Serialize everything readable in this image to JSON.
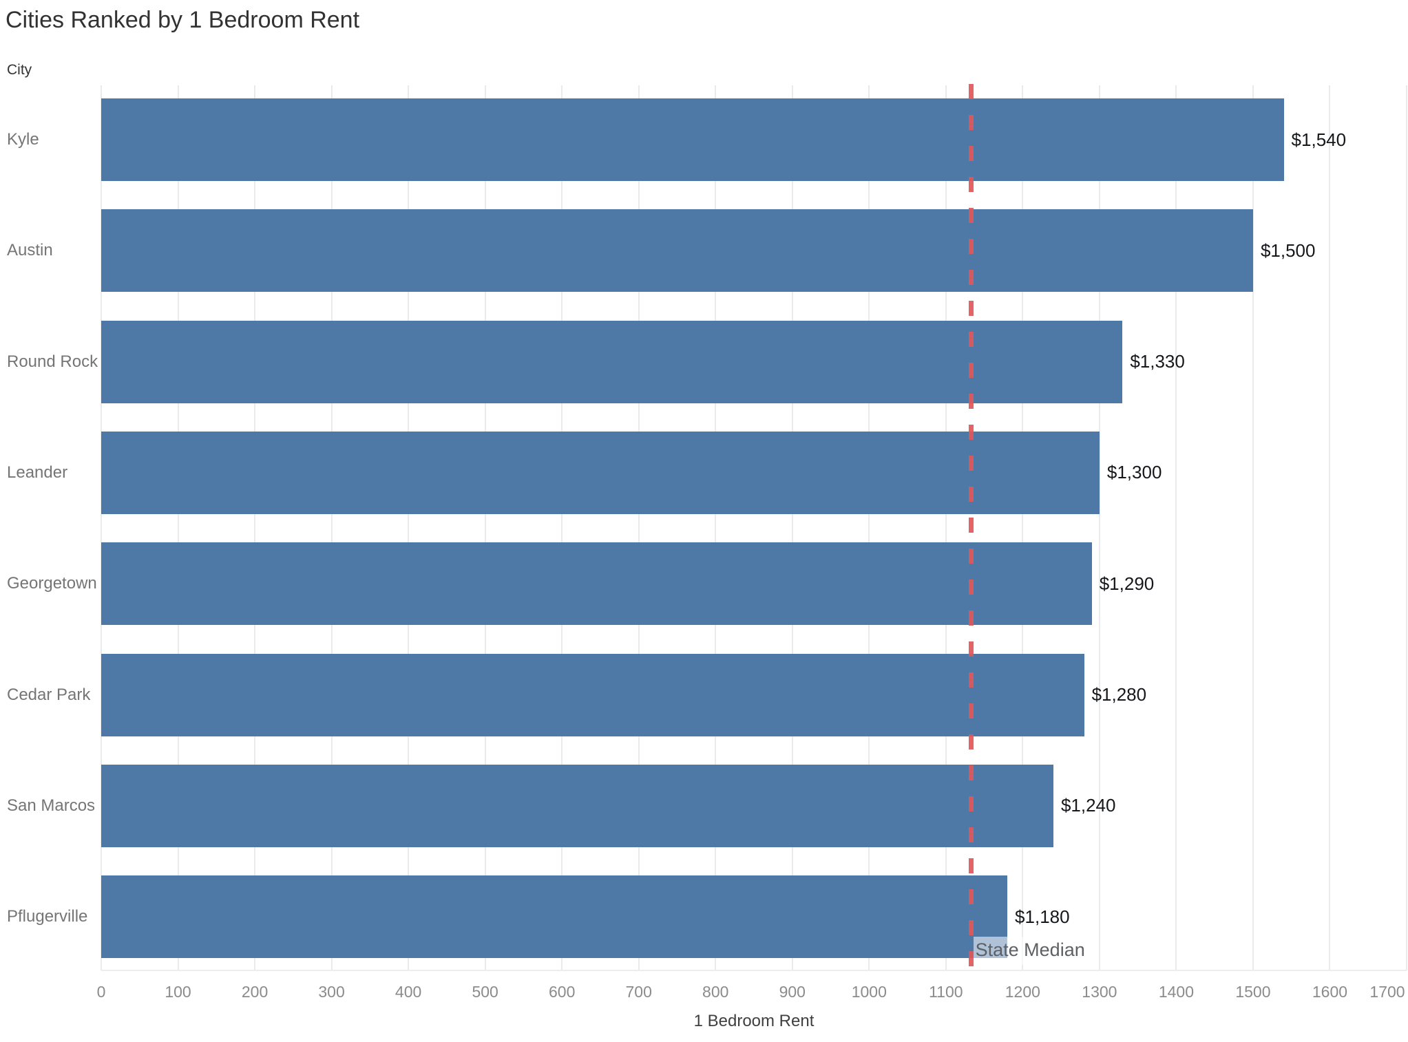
{
  "page": {
    "background": "#ffffff"
  },
  "chart_data": {
    "type": "bar",
    "orientation": "horizontal",
    "title": "Cities Ranked by 1 Bedroom Rent",
    "ylabel": "City",
    "xlabel": "1 Bedroom Rent",
    "categories": [
      "Kyle",
      "Austin",
      "Round Rock",
      "Leander",
      "Georgetown",
      "Cedar Park",
      "San Marcos",
      "Pflugerville"
    ],
    "values": [
      1540,
      1500,
      1330,
      1300,
      1290,
      1280,
      1240,
      1180
    ],
    "value_labels": [
      "$1,540",
      "$1,500",
      "$1,330",
      "$1,300",
      "$1,290",
      "$1,280",
      "$1,240",
      "$1,180"
    ],
    "xlim": [
      0,
      1700
    ],
    "xtick_step": 100,
    "grid": "vertical",
    "legend": "none",
    "bar_color": "#4e79a7",
    "grid_color": "#eaeaea",
    "reference_line": {
      "value": 1133,
      "label": "State Median",
      "color": "#e15759",
      "style": "dashed"
    }
  }
}
